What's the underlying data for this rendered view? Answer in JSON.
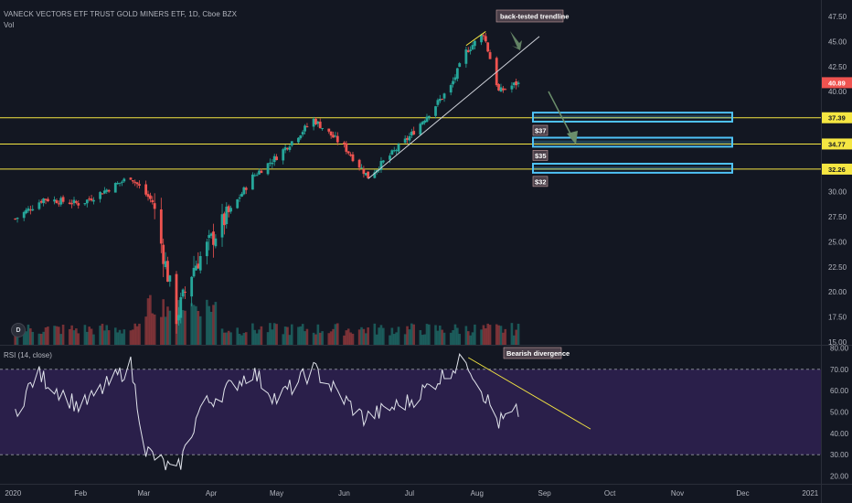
{
  "header": {
    "symbol_line": "VANECK VECTORS ETF TRUST GOLD MINERS ETF, 1D, Cboe BZX",
    "vol_label": "Vol"
  },
  "rsi_label": "RSI (14, close)",
  "dividends_badge": "D",
  "colors": {
    "background": "#131722",
    "up": "#26a69a",
    "down": "#ef5350",
    "level_line": "#f5e642",
    "zone_border": "#4fc3f7",
    "rsi_band": "#2a1f4a",
    "rsi_line": "#e0e3eb",
    "trendline": "#d1d4dc",
    "arrow": "#6b8e6b"
  },
  "chart_data": [
    {
      "type": "candlestick",
      "title": "VANECK VECTORS ETF TRUST GOLD MINERS ETF, 1D, Cboe BZX",
      "x_tick_labels": [
        "2020",
        "Feb",
        "Mar",
        "Apr",
        "May",
        "Jun",
        "Jul",
        "Aug",
        "Sep",
        "Oct",
        "Nov",
        "Dec",
        "2021"
      ],
      "y_ticks": [
        15.0,
        17.5,
        20.0,
        22.5,
        25.0,
        27.5,
        30.0,
        32.5,
        35.0,
        37.5,
        40.0,
        42.5,
        45.0,
        47.5
      ],
      "ylim": [
        13.5,
        49.5
      ],
      "last_price": 40.89,
      "price_tags": [
        37.39,
        34.77,
        32.26
      ],
      "horizontal_levels": [
        37.39,
        34.77,
        32.26
      ],
      "zones": [
        {
          "label": "$37",
          "low": 37.0,
          "high": 37.9
        },
        {
          "label": "$35",
          "low": 34.5,
          "high": 35.4
        },
        {
          "label": "$32",
          "low": 31.9,
          "high": 32.8
        }
      ],
      "annotations": [
        "back-tested trendline"
      ],
      "approx_daily_close_keypoints": [
        {
          "date": "2020-01-02",
          "close": 27.3
        },
        {
          "date": "2020-01-15",
          "close": 29.3
        },
        {
          "date": "2020-02-01",
          "close": 28.8
        },
        {
          "date": "2020-02-24",
          "close": 31.5
        },
        {
          "date": "2020-03-05",
          "close": 29.0
        },
        {
          "date": "2020-03-16",
          "close": 17.5
        },
        {
          "date": "2020-03-24",
          "close": 22.5
        },
        {
          "date": "2020-04-08",
          "close": 27.5
        },
        {
          "date": "2020-04-20",
          "close": 31.5
        },
        {
          "date": "2020-05-01",
          "close": 33.5
        },
        {
          "date": "2020-05-18",
          "close": 37.2
        },
        {
          "date": "2020-06-01",
          "close": 34.5
        },
        {
          "date": "2020-06-12",
          "close": 31.5
        },
        {
          "date": "2020-07-01",
          "close": 35.5
        },
        {
          "date": "2020-07-20",
          "close": 40.5
        },
        {
          "date": "2020-07-27",
          "close": 44.0
        },
        {
          "date": "2020-08-04",
          "close": 45.8
        },
        {
          "date": "2020-08-11",
          "close": 40.0
        },
        {
          "date": "2020-08-20",
          "close": 40.89
        }
      ]
    },
    {
      "type": "line",
      "title": "RSI (14, close)",
      "y_ticks": [
        20.0,
        30.0,
        40.0,
        50.0,
        60.0,
        70.0,
        80.0
      ],
      "ylim": [
        17,
        82
      ],
      "bands": [
        30,
        70
      ],
      "annotations": [
        "Bearish divergence"
      ],
      "approx_keypoints": [
        {
          "date": "2020-01-02",
          "rsi": 50
        },
        {
          "date": "2020-01-12",
          "rsi": 68
        },
        {
          "date": "2020-02-01",
          "rsi": 52
        },
        {
          "date": "2020-02-24",
          "rsi": 72
        },
        {
          "date": "2020-03-02",
          "rsi": 32
        },
        {
          "date": "2020-03-16",
          "rsi": 21
        },
        {
          "date": "2020-03-27",
          "rsi": 52
        },
        {
          "date": "2020-04-20",
          "rsi": 69
        },
        {
          "date": "2020-05-01",
          "rsi": 56
        },
        {
          "date": "2020-05-18",
          "rsi": 70
        },
        {
          "date": "2020-06-10",
          "rsi": 47
        },
        {
          "date": "2020-07-01",
          "rsi": 55
        },
        {
          "date": "2020-07-20",
          "rsi": 70
        },
        {
          "date": "2020-07-27",
          "rsi": 75
        },
        {
          "date": "2020-08-11",
          "rsi": 45
        },
        {
          "date": "2020-08-20",
          "rsi": 50
        }
      ]
    }
  ]
}
